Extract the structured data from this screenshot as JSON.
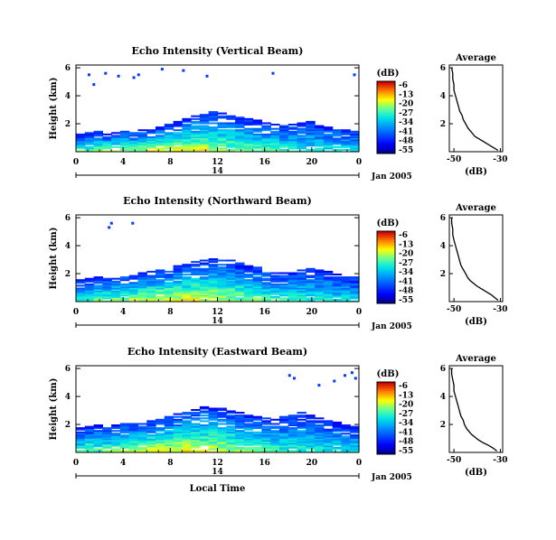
{
  "chart_data": [
    {
      "type": "heatmap",
      "title": "Echo Intensity (Vertical Beam)",
      "ylabel": "Height (km)",
      "x_ticks": [
        "0",
        "4",
        "8",
        "12",
        "16",
        "20",
        "0"
      ],
      "y_ticks": [
        "2",
        "4",
        "6"
      ],
      "xlim": [
        0,
        24
      ],
      "ylim": [
        0,
        6.2
      ],
      "cloud_top_km": [
        1.3,
        1.4,
        1.5,
        1.3,
        1.4,
        1.5,
        1.4,
        1.6,
        1.7,
        1.8,
        2.0,
        2.2,
        2.4,
        2.6,
        2.7,
        2.9,
        2.8,
        2.6,
        2.5,
        2.4,
        2.3,
        2.1,
        2.0,
        1.9,
        2.0,
        2.1,
        2.2,
        2.0,
        1.8,
        1.7,
        1.6,
        1.5
      ],
      "sparse_echoes": [
        [
          1.0,
          5.6
        ],
        [
          1.4,
          4.9
        ],
        [
          2.4,
          5.7
        ],
        [
          3.5,
          5.5
        ],
        [
          4.8,
          5.4
        ],
        [
          5.2,
          5.6
        ],
        [
          7.2,
          6.0
        ],
        [
          9.0,
          5.9
        ],
        [
          11.0,
          5.5
        ],
        [
          16.6,
          5.7
        ],
        [
          23.5,
          5.6
        ]
      ],
      "colorbar": {
        "unit": "(dB)",
        "ticks": [
          "-6",
          "-13",
          "-20",
          "-27",
          "-34",
          "-41",
          "-48",
          "-55"
        ]
      },
      "time_axis": {
        "day_label": "14",
        "date_label": "Jan 2005"
      },
      "profile": {
        "title": "Average",
        "xlabel": "(dB)",
        "x_ticks": [
          "-50",
          "-30"
        ],
        "y_ticks": [
          "2",
          "4",
          "6"
        ],
        "xlim": [
          -52,
          -29
        ],
        "ylim": [
          0,
          6.2
        ],
        "height_km": [
          0.1,
          0.3,
          0.5,
          0.7,
          0.9,
          1.1,
          1.3,
          1.5,
          1.7,
          2.0,
          2.3,
          2.6,
          2.9,
          3.2,
          3.5,
          3.8,
          4.1,
          4.4,
          4.8,
          5.2,
          5.6,
          6.0
        ],
        "mean_db": [
          -31,
          -33,
          -35,
          -37,
          -39,
          -41,
          -42,
          -43,
          -44,
          -45,
          -46,
          -46.5,
          -47.5,
          -48,
          -48.5,
          -49,
          -49.5,
          -50,
          -50,
          -50.5,
          -50.5,
          -51
        ]
      }
    },
    {
      "type": "heatmap",
      "title": "Echo Intensity (Northward Beam)",
      "ylabel": "Height (km)",
      "x_ticks": [
        "0",
        "4",
        "8",
        "12",
        "16",
        "20",
        "0"
      ],
      "y_ticks": [
        "2",
        "4",
        "6"
      ],
      "xlim": [
        0,
        24
      ],
      "ylim": [
        0,
        6.2
      ],
      "cloud_top_km": [
        1.6,
        1.7,
        1.8,
        1.7,
        1.8,
        1.9,
        2.0,
        2.1,
        2.2,
        2.3,
        2.4,
        2.6,
        2.7,
        2.9,
        3.0,
        3.2,
        3.1,
        3.0,
        2.8,
        2.6,
        2.5,
        2.3,
        2.2,
        2.1,
        2.2,
        2.3,
        2.4,
        2.3,
        2.2,
        2.0,
        1.9,
        1.8
      ],
      "sparse_echoes": [
        [
          2.7,
          5.4
        ],
        [
          2.9,
          5.7
        ],
        [
          4.7,
          5.7
        ]
      ],
      "colorbar": {
        "unit": "(dB)",
        "ticks": [
          "-6",
          "-13",
          "-20",
          "-27",
          "-34",
          "-41",
          "-48",
          "-55"
        ]
      },
      "time_axis": {
        "day_label": "14",
        "date_label": "Jan 2005"
      },
      "profile": {
        "title": "Average",
        "xlabel": "(dB)",
        "x_ticks": [
          "-50",
          "-30"
        ],
        "y_ticks": [
          "2",
          "4",
          "6"
        ],
        "xlim": [
          -52,
          -29
        ],
        "ylim": [
          0,
          6.2
        ],
        "height_km": [
          0.1,
          0.3,
          0.5,
          0.7,
          0.9,
          1.1,
          1.3,
          1.5,
          1.7,
          2.0,
          2.3,
          2.6,
          2.9,
          3.2,
          3.5,
          3.8,
          4.1,
          4.4,
          4.8,
          5.2,
          5.6,
          6.0
        ],
        "mean_db": [
          -31,
          -32.5,
          -34,
          -36,
          -38,
          -40,
          -41.5,
          -43,
          -44,
          -45,
          -46,
          -47,
          -47.5,
          -48,
          -48.5,
          -49,
          -49.5,
          -50,
          -50.5,
          -50.5,
          -51,
          -51
        ]
      }
    },
    {
      "type": "heatmap",
      "title": "Echo Intensity (Eastward Beam)",
      "ylabel": "Height (km)",
      "x_ticks": [
        "0",
        "4",
        "8",
        "12",
        "16",
        "20",
        "0"
      ],
      "y_ticks": [
        "2",
        "4",
        "6"
      ],
      "xlim": [
        0,
        24
      ],
      "ylim": [
        0,
        6.2
      ],
      "cloud_top_km": [
        1.8,
        1.9,
        2.0,
        1.9,
        2.0,
        2.1,
        2.1,
        2.2,
        2.3,
        2.4,
        2.6,
        2.8,
        3.0,
        3.1,
        3.3,
        3.4,
        3.2,
        3.0,
        2.9,
        2.7,
        2.6,
        2.5,
        2.4,
        2.6,
        2.8,
        2.9,
        2.7,
        2.5,
        2.3,
        2.2,
        2.0,
        1.9
      ],
      "sparse_echoes": [
        [
          18.0,
          5.6
        ],
        [
          18.4,
          5.4
        ],
        [
          20.5,
          4.9
        ],
        [
          21.8,
          5.2
        ],
        [
          22.7,
          5.6
        ],
        [
          23.3,
          5.8
        ],
        [
          23.6,
          5.4
        ]
      ],
      "colorbar": {
        "unit": "(dB)",
        "ticks": [
          "-6",
          "-13",
          "-20",
          "-27",
          "-34",
          "-41",
          "-48",
          "-55"
        ]
      },
      "time_axis": {
        "day_label": "14",
        "date_label": "Jan 2005",
        "xlabel": "Local Time"
      },
      "profile": {
        "title": "Average",
        "xlabel": "(dB)",
        "x_ticks": [
          "-50",
          "-30"
        ],
        "y_ticks": [
          "2",
          "4",
          "6"
        ],
        "xlim": [
          -52,
          -29
        ],
        "ylim": [
          0,
          6.2
        ],
        "height_km": [
          0.1,
          0.3,
          0.5,
          0.7,
          0.9,
          1.1,
          1.3,
          1.5,
          1.7,
          2.0,
          2.3,
          2.6,
          2.9,
          3.2,
          3.5,
          3.8,
          4.1,
          4.4,
          4.8,
          5.2,
          5.6,
          6.0
        ],
        "mean_db": [
          -31.5,
          -33,
          -35,
          -37.5,
          -39.5,
          -41,
          -42.5,
          -43.5,
          -44.5,
          -45.5,
          -46,
          -47,
          -47.5,
          -48,
          -48.5,
          -49,
          -49.5,
          -50,
          -50,
          -50.5,
          -51,
          -51
        ]
      }
    }
  ]
}
